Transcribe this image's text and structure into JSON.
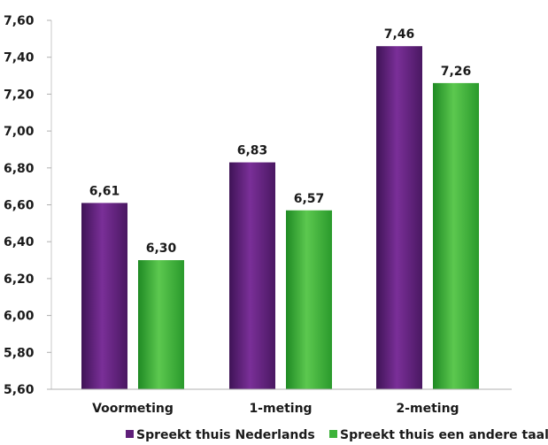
{
  "chart_data": {
    "type": "bar",
    "categories": [
      "Voormeting",
      "1-meting",
      "2-meting"
    ],
    "series": [
      {
        "name": "Spreekt thuis Nederlands",
        "values": [
          6.61,
          6.83,
          7.46
        ],
        "labels": [
          "6,61",
          "6,83",
          "7,46"
        ],
        "color": "#5f1f7a"
      },
      {
        "name": "Spreekt thuis een andere taal",
        "values": [
          6.3,
          6.57,
          7.26
        ],
        "labels": [
          "6,30",
          "6,57",
          "7,26"
        ],
        "color": "#3db33a"
      }
    ],
    "ylim": [
      5.6,
      7.6
    ],
    "yticks": [
      5.6,
      5.8,
      6.0,
      6.2,
      6.4,
      6.6,
      6.8,
      7.0,
      7.2,
      7.4,
      7.6
    ],
    "ytick_labels": [
      "5,60",
      "5,80",
      "6,00",
      "6,20",
      "6,40",
      "6,60",
      "6,80",
      "7,00",
      "7,20",
      "7,40",
      "7,60"
    ],
    "grid": false,
    "legend_position": "bottom",
    "title": "",
    "xlabel": "",
    "ylabel": ""
  }
}
